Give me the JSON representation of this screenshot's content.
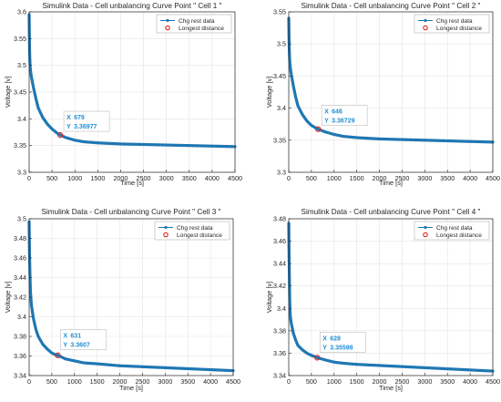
{
  "chart_data": [
    {
      "type": "scatter",
      "title": "Simulink Data - Cell unbalancing Curve Point \" Cell 1 \"",
      "xlabel": "Time [s]",
      "ylabel": "Voltage [v]",
      "xlim": [
        0,
        4500
      ],
      "ylim": [
        3.3,
        3.6
      ],
      "xticks": [
        "0",
        "500",
        "1000",
        "1500",
        "2000",
        "2500",
        "3000",
        "3500",
        "4000",
        "4500"
      ],
      "yticks": [
        "3.3",
        "3.35",
        "3.4",
        "3.45",
        "3.5",
        "3.55",
        "3.6"
      ],
      "grid": true,
      "legend_position": "top-right",
      "legend": [
        "Chg rest data",
        "Longest distance"
      ],
      "series": [
        {
          "name": "Chg rest data",
          "x": [
            0,
            5,
            10,
            20,
            30,
            50,
            75,
            100,
            150,
            200,
            300,
            400,
            500,
            600,
            679,
            800,
            1000,
            1200,
            1500,
            2000,
            2500,
            3000,
            3500,
            4000,
            4500
          ],
          "y": [
            3.595,
            3.555,
            3.528,
            3.5,
            3.49,
            3.478,
            3.467,
            3.456,
            3.437,
            3.42,
            3.402,
            3.39,
            3.381,
            3.374,
            3.36977,
            3.365,
            3.36,
            3.357,
            3.355,
            3.353,
            3.352,
            3.351,
            3.35,
            3.349,
            3.348
          ]
        },
        {
          "name": "Longest distance",
          "x": [
            679
          ],
          "y": [
            3.36977
          ]
        }
      ],
      "datatip": {
        "x_label": "X",
        "x_value": "679",
        "y_label": "Y",
        "y_value": "3.36977"
      }
    },
    {
      "type": "scatter",
      "title": "Simulink Data - Cell unbalancing Curve Point \" Cell 2 \"",
      "xlabel": "Time [s]",
      "ylabel": "Voltage [v]",
      "xlim": [
        0,
        4500
      ],
      "ylim": [
        3.3,
        3.55
      ],
      "xticks": [
        "0",
        "500",
        "1000",
        "1500",
        "2000",
        "2500",
        "3000",
        "3500",
        "4000",
        "4500"
      ],
      "yticks": [
        "3.3",
        "3.35",
        "3.4",
        "3.45",
        "3.5",
        "3.55"
      ],
      "grid": true,
      "legend_position": "top-right",
      "legend": [
        "Chg rest data",
        "Longest distance"
      ],
      "series": [
        {
          "name": "Chg rest data",
          "x": [
            0,
            5,
            10,
            20,
            30,
            50,
            75,
            100,
            150,
            200,
            300,
            400,
            500,
            600,
            646,
            800,
            1000,
            1200,
            1500,
            2000,
            2500,
            3000,
            3500,
            4000,
            4500
          ],
          "y": [
            3.54,
            3.515,
            3.495,
            3.475,
            3.466,
            3.455,
            3.445,
            3.435,
            3.418,
            3.404,
            3.39,
            3.38,
            3.373,
            3.369,
            3.36729,
            3.363,
            3.359,
            3.356,
            3.354,
            3.352,
            3.351,
            3.35,
            3.349,
            3.348,
            3.347
          ]
        },
        {
          "name": "Longest distance",
          "x": [
            646
          ],
          "y": [
            3.36729
          ]
        }
      ],
      "datatip": {
        "x_label": "X",
        "x_value": "646",
        "y_label": "Y",
        "y_value": "3.36729"
      }
    },
    {
      "type": "scatter",
      "title": "Simulink Data - Cell unbalancing Curve Point \" Cell 3 \"",
      "xlabel": "Time [s]",
      "ylabel": "Voltage [v]",
      "xlim": [
        0,
        4500
      ],
      "ylim": [
        3.34,
        3.5
      ],
      "xticks": [
        "0",
        "500",
        "1000",
        "1500",
        "2000",
        "2500",
        "3000",
        "3500",
        "4000",
        "4500"
      ],
      "yticks": [
        "3.34",
        "3.36",
        "3.38",
        "3.4",
        "3.42",
        "3.44",
        "3.46",
        "3.48",
        "3.5"
      ],
      "grid": true,
      "legend_position": "top-right",
      "legend": [
        "Chg rest data",
        "Longest distance"
      ],
      "series": [
        {
          "name": "Chg rest data",
          "x": [
            0,
            5,
            10,
            20,
            30,
            50,
            75,
            100,
            150,
            200,
            300,
            400,
            500,
            600,
            631,
            800,
            1000,
            1200,
            1500,
            2000,
            2500,
            3000,
            3500,
            4000,
            4500
          ],
          "y": [
            3.497,
            3.475,
            3.46,
            3.44,
            3.425,
            3.412,
            3.404,
            3.397,
            3.387,
            3.38,
            3.372,
            3.367,
            3.363,
            3.361,
            3.3607,
            3.357,
            3.355,
            3.353,
            3.352,
            3.35,
            3.349,
            3.348,
            3.347,
            3.346,
            3.345
          ]
        },
        {
          "name": "Longest distance",
          "x": [
            631
          ],
          "y": [
            3.3607
          ]
        }
      ],
      "datatip": {
        "x_label": "X",
        "x_value": "631",
        "y_label": "Y",
        "y_value": "3.3607"
      }
    },
    {
      "type": "scatter",
      "title": "Simulink Data - Cell unbalancing Curve Point \" Cell 4 \"",
      "xlabel": "Time [s]",
      "ylabel": "Voltage [v]",
      "xlim": [
        0,
        4500
      ],
      "ylim": [
        3.34,
        3.48
      ],
      "xticks": [
        "0",
        "500",
        "1000",
        "1500",
        "2000",
        "2500",
        "3000",
        "3500",
        "4000",
        "4500"
      ],
      "yticks": [
        "3.34",
        "3.36",
        "3.38",
        "3.4",
        "3.42",
        "3.44",
        "3.46",
        "3.48"
      ],
      "grid": true,
      "legend_position": "top-right",
      "legend": [
        "Chg rest data",
        "Longest distance"
      ],
      "series": [
        {
          "name": "Chg rest data",
          "x": [
            0,
            5,
            10,
            20,
            30,
            50,
            75,
            100,
            150,
            200,
            300,
            400,
            500,
            600,
            628,
            800,
            1000,
            1200,
            1500,
            2000,
            2500,
            3000,
            3500,
            4000,
            4500
          ],
          "y": [
            3.476,
            3.455,
            3.44,
            3.41,
            3.395,
            3.388,
            3.383,
            3.378,
            3.372,
            3.367,
            3.363,
            3.36,
            3.358,
            3.3565,
            3.35598,
            3.354,
            3.352,
            3.351,
            3.35,
            3.349,
            3.348,
            3.347,
            3.346,
            3.345,
            3.344
          ]
        },
        {
          "name": "Longest distance",
          "x": [
            628
          ],
          "y": [
            3.35598
          ]
        }
      ],
      "datatip": {
        "x_label": "X",
        "x_value": "628",
        "y_label": "Y",
        "y_value": "3.35598"
      }
    }
  ],
  "colors": {
    "series": "#1f77b4",
    "marker_ring": "#d62728",
    "datatip_text": "#1f8fd6",
    "grid": "#e3e3e3",
    "axis": "#262626"
  }
}
